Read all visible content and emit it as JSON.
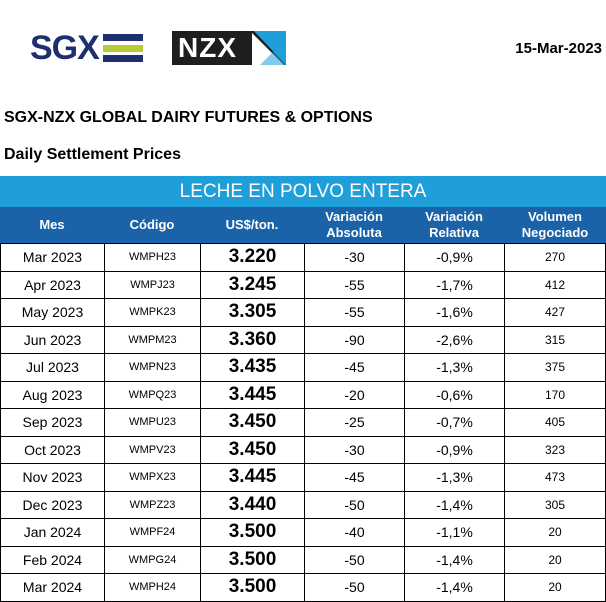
{
  "logos": {
    "sgx_text": "SGX",
    "sgx_bar_colors": [
      "#1d2f6f",
      "#b4cd35",
      "#1d2f6f"
    ],
    "nzx_text": "NZX",
    "nzx_mark_colors": [
      "#1f9fd9",
      "#ffffff"
    ]
  },
  "date": "15-Mar-2023",
  "title": "SGX-NZX GLOBAL DAIRY FUTURES & OPTIONS",
  "subtitle": "Daily Settlement Prices",
  "product": "LECHE EN POLVO ENTERA",
  "colors": {
    "banner": "#1f9fd9",
    "header": "#1a63a9"
  },
  "columns": {
    "mes": "Mes",
    "codigo": "Código",
    "precio": "US$/ton.",
    "var_abs_1": "Variación",
    "var_abs_2": "Absoluta",
    "var_rel_1": "Variación",
    "var_rel_2": "Relativa",
    "vol_1": "Volumen",
    "vol_2": "Negociado"
  },
  "rows": [
    {
      "mes": "Mar 2023",
      "codigo": "WMPH23",
      "precio": "3.220",
      "abs": "-30",
      "rel": "-0,9%",
      "vol": "270"
    },
    {
      "mes": "Apr 2023",
      "codigo": "WMPJ23",
      "precio": "3.245",
      "abs": "-55",
      "rel": "-1,7%",
      "vol": "412"
    },
    {
      "mes": "May 2023",
      "codigo": "WMPK23",
      "precio": "3.305",
      "abs": "-55",
      "rel": "-1,6%",
      "vol": "427"
    },
    {
      "mes": "Jun 2023",
      "codigo": "WMPM23",
      "precio": "3.360",
      "abs": "-90",
      "rel": "-2,6%",
      "vol": "315"
    },
    {
      "mes": "Jul 2023",
      "codigo": "WMPN23",
      "precio": "3.435",
      "abs": "-45",
      "rel": "-1,3%",
      "vol": "375"
    },
    {
      "mes": "Aug 2023",
      "codigo": "WMPQ23",
      "precio": "3.445",
      "abs": "-20",
      "rel": "-0,6%",
      "vol": "170"
    },
    {
      "mes": "Sep 2023",
      "codigo": "WMPU23",
      "precio": "3.450",
      "abs": "-25",
      "rel": "-0,7%",
      "vol": "405"
    },
    {
      "mes": "Oct 2023",
      "codigo": "WMPV23",
      "precio": "3.450",
      "abs": "-30",
      "rel": "-0,9%",
      "vol": "323"
    },
    {
      "mes": "Nov 2023",
      "codigo": "WMPX23",
      "precio": "3.445",
      "abs": "-45",
      "rel": "-1,3%",
      "vol": "473"
    },
    {
      "mes": "Dec 2023",
      "codigo": "WMPZ23",
      "precio": "3.440",
      "abs": "-50",
      "rel": "-1,4%",
      "vol": "305"
    },
    {
      "mes": "Jan 2024",
      "codigo": "WMPF24",
      "precio": "3.500",
      "abs": "-40",
      "rel": "-1,1%",
      "vol": "20"
    },
    {
      "mes": "Feb 2024",
      "codigo": "WMPG24",
      "precio": "3.500",
      "abs": "-50",
      "rel": "-1,4%",
      "vol": "20"
    },
    {
      "mes": "Mar 2024",
      "codigo": "WMPH24",
      "precio": "3.500",
      "abs": "-50",
      "rel": "-1,4%",
      "vol": "20"
    }
  ]
}
